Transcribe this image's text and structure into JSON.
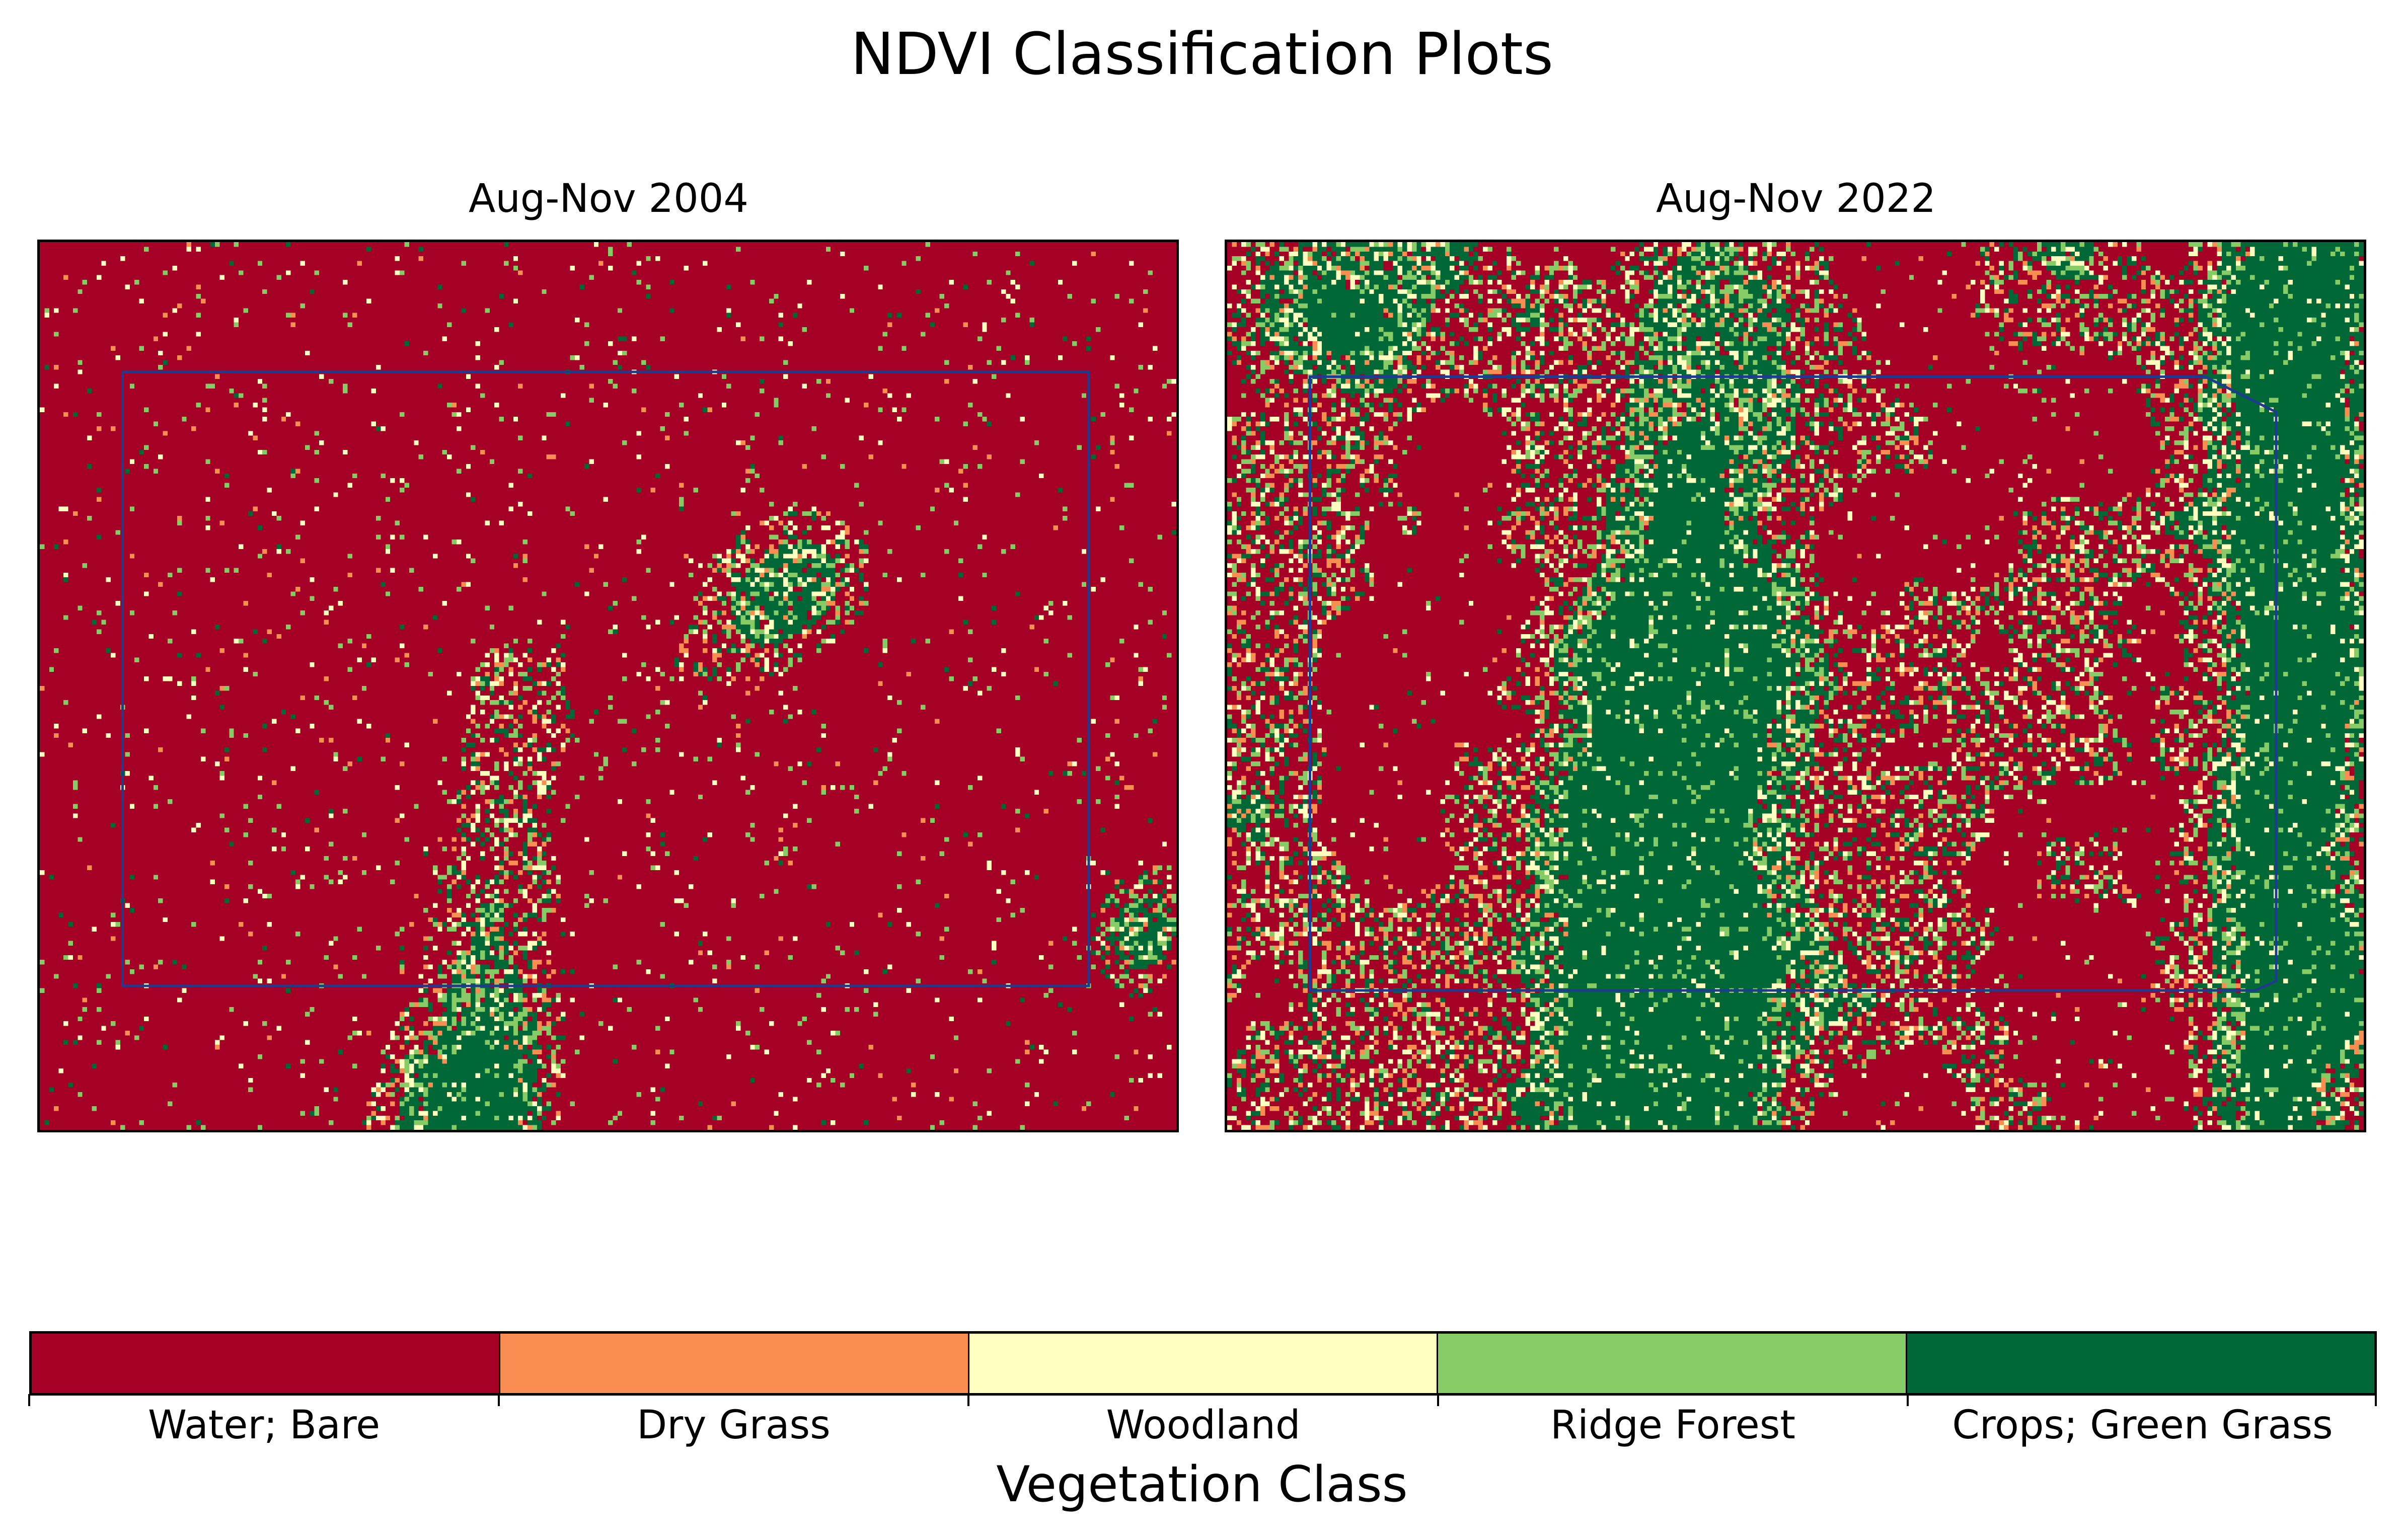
{
  "title": "NDVI Classification Plots",
  "chart_data": {
    "type": "heatmap",
    "panels": [
      {
        "title": "Aug-Nov 2004",
        "overlay_rectangle": true
      },
      {
        "title": "Aug-Nov 2022",
        "overlay_rectangle": true
      }
    ],
    "ticks_visible": false,
    "colorbar": {
      "label": "Vegetation Class",
      "placement": "bottom",
      "classes": [
        {
          "name": "Water; Bare",
          "color": "#a50026"
        },
        {
          "name": "Dry Grass",
          "color": "#f98e52"
        },
        {
          "name": "Woodland",
          "color": "#ffffbf"
        },
        {
          "name": "Ridge Forest",
          "color": "#86cb66"
        },
        {
          "name": "Crops; Green Grass",
          "color": "#006837"
        }
      ]
    }
  },
  "overlay_color": "#1f3b8f"
}
